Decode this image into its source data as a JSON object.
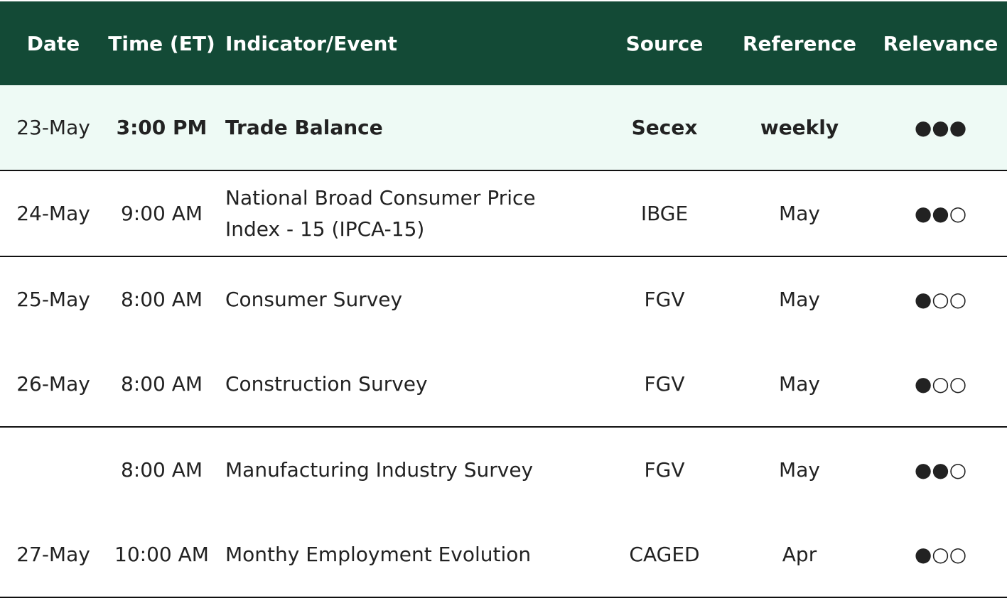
{
  "table": {
    "header": [
      "Date",
      "Time (ET)",
      "Indicator/Event",
      "Source",
      "Reference",
      "Relevance"
    ],
    "rows": [
      [
        "23-May",
        "3:00 PM",
        "Trade Balance",
        "Secex",
        "weekly",
        "●●●"
      ],
      [
        "24-May",
        "9:00 AM",
        "National Broad Consumer Price Index - 15 (IPCA-15)",
        "IBGE",
        "May",
        "●●○"
      ],
      [
        "25-May",
        "8:00 AM",
        "Consumer Survey",
        "FGV",
        "May",
        "●○○"
      ],
      [
        "26-May",
        "8:00 AM",
        "Construction Survey",
        "FGV",
        "May",
        "●○○"
      ],
      [
        null,
        "8:00 AM",
        "Manufacturing Industry Survey",
        "FGV",
        "May",
        "●●○"
      ],
      [
        "27-May",
        "10:00 AM",
        "Monthy Employment Evolution",
        "CAGED",
        "Apr",
        "●○○"
      ]
    ]
  }
}
